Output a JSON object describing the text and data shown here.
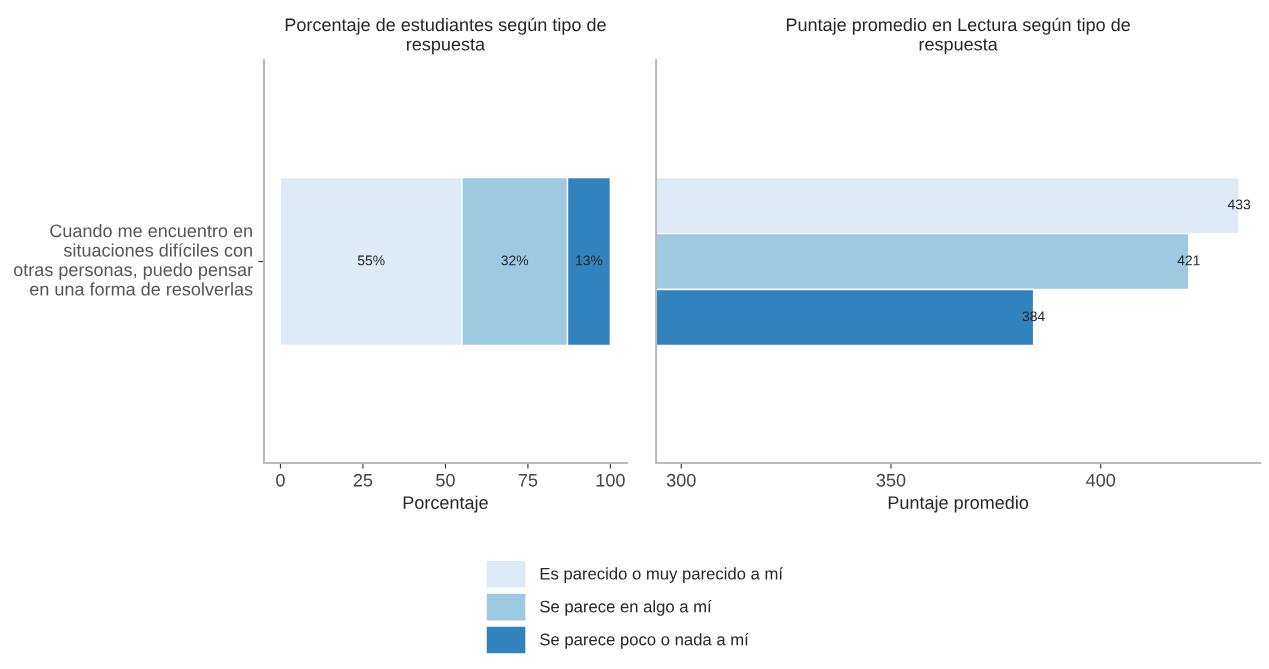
{
  "chart_data": [
    {
      "type": "bar",
      "title": "Porcentaje de estudiantes según tipo de\nrespuesta",
      "xlabel": "Porcentaje",
      "orientation": "horizontal",
      "stacked": true,
      "categories": [
        "Cuando me encuentro en\nsituaciones difíciles con\notras personas, puedo pensar\nen una forma de resolverlas"
      ],
      "xlim": [
        -5,
        105
      ],
      "xticks": [
        0,
        25,
        50,
        75,
        100
      ],
      "grid": false,
      "legend": "bottom",
      "series": [
        {
          "name": "Es parecido o muy parecido a mí",
          "color": "#deebf7",
          "values": [
            55
          ],
          "value_labels": [
            "55%"
          ]
        },
        {
          "name": "Se parece en algo a mí",
          "color": "#9ecae1",
          "values": [
            32
          ],
          "value_labels": [
            "32%"
          ]
        },
        {
          "name": "Se parece poco o nada a mí",
          "color": "#3182bd",
          "values": [
            13
          ],
          "value_labels": [
            "13%"
          ]
        }
      ]
    },
    {
      "type": "bar",
      "title": "Puntaje promedio en Lectura según tipo de\nrespuesta",
      "xlabel": "Puntaje promedio",
      "orientation": "horizontal",
      "categories": [
        null
      ],
      "xlim": [
        294,
        438
      ],
      "xticks": [
        300,
        350,
        400
      ],
      "grid": false,
      "data_labels": true,
      "series": [
        {
          "color": "#deebf7",
          "values": [
            433
          ]
        },
        {
          "color": "#9ecae1",
          "values": [
            421
          ]
        },
        {
          "color": "#3182bd",
          "values": [
            384
          ]
        }
      ]
    }
  ]
}
